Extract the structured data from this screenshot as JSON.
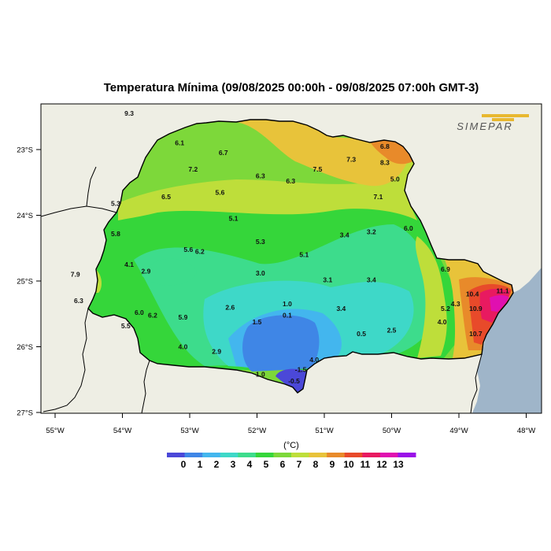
{
  "map": {
    "title": "Temperatura Mínima (09/08/2025 00:00h - 09/08/2025 07:00h GMT-3)",
    "logo_text": "SIMEPAR",
    "lon_ticks": [
      "55°W",
      "54°W",
      "53°W",
      "52°W",
      "51°W",
      "50°W",
      "49°W",
      "48°W"
    ],
    "lat_ticks": [
      "23°S",
      "24°S",
      "25°S",
      "26°S",
      "27°S"
    ],
    "colors": {
      "ocean": "#9fb5c9",
      "land": "#eeeee4",
      "border": "#000000"
    }
  },
  "legend": {
    "unit": "(°C)",
    "ticks": [
      "0",
      "1",
      "2",
      "3",
      "4",
      "5",
      "6",
      "7",
      "8",
      "9",
      "10",
      "11",
      "12",
      "13"
    ],
    "colors": [
      "#4b48d8",
      "#3f86e6",
      "#43b6ee",
      "#3ed8c8",
      "#3ddc8c",
      "#35d63a",
      "#7dd83a",
      "#bede3a",
      "#e8c33a",
      "#e88a2a",
      "#e84a2a",
      "#e81a60",
      "#e010b0",
      "#9a10e8"
    ]
  },
  "station_labels": [
    {
      "text": "9.3",
      "lon": -53.9,
      "lat": -22.45
    },
    {
      "text": "6.1",
      "lon": -53.15,
      "lat": -22.9
    },
    {
      "text": "6.7",
      "lon": -52.5,
      "lat": -23.05
    },
    {
      "text": "7.2",
      "lon": -52.95,
      "lat": -23.3
    },
    {
      "text": "6.3",
      "lon": -51.95,
      "lat": -23.4
    },
    {
      "text": "6.3",
      "lon": -51.5,
      "lat": -23.48
    },
    {
      "text": "7.5",
      "lon": -51.1,
      "lat": -23.3
    },
    {
      "text": "7.3",
      "lon": -50.6,
      "lat": -23.15
    },
    {
      "text": "6.8",
      "lon": -50.1,
      "lat": -22.95
    },
    {
      "text": "8.3",
      "lon": -50.1,
      "lat": -23.2
    },
    {
      "text": "5.0",
      "lon": -49.95,
      "lat": -23.45
    },
    {
      "text": "7.1",
      "lon": -50.2,
      "lat": -23.72
    },
    {
      "text": "5.6",
      "lon": -52.55,
      "lat": -23.65
    },
    {
      "text": "6.5",
      "lon": -53.35,
      "lat": -23.72
    },
    {
      "text": "5.3",
      "lon": -54.1,
      "lat": -23.82
    },
    {
      "text": "5.1",
      "lon": -52.35,
      "lat": -24.05
    },
    {
      "text": "5.8",
      "lon": -54.1,
      "lat": -24.28
    },
    {
      "text": "6.0",
      "lon": -49.75,
      "lat": -24.2
    },
    {
      "text": "3.4",
      "lon": -50.7,
      "lat": -24.3
    },
    {
      "text": "3.2",
      "lon": -50.3,
      "lat": -24.25
    },
    {
      "text": "5.3",
      "lon": -51.95,
      "lat": -24.4
    },
    {
      "text": "5.1",
      "lon": -51.3,
      "lat": -24.6
    },
    {
      "text": "5.6",
      "lon": -53.02,
      "lat": -24.52
    },
    {
      "text": "6.2",
      "lon": -52.85,
      "lat": -24.55
    },
    {
      "text": "4.1",
      "lon": -53.9,
      "lat": -24.75
    },
    {
      "text": "2.9",
      "lon": -53.65,
      "lat": -24.85
    },
    {
      "text": "3.0",
      "lon": -51.95,
      "lat": -24.88
    },
    {
      "text": "3.1",
      "lon": -50.95,
      "lat": -24.98
    },
    {
      "text": "3.4",
      "lon": -50.3,
      "lat": -24.98
    },
    {
      "text": "6.9",
      "lon": -49.2,
      "lat": -24.82
    },
    {
      "text": "7.9",
      "lon": -54.7,
      "lat": -24.9
    },
    {
      "text": "6.3",
      "lon": -54.65,
      "lat": -25.3
    },
    {
      "text": "10.4",
      "lon": -48.8,
      "lat": -25.2
    },
    {
      "text": "11.1",
      "lon": -48.35,
      "lat": -25.15
    },
    {
      "text": "1.0",
      "lon": -51.55,
      "lat": -25.35
    },
    {
      "text": "4.3",
      "lon": -49.05,
      "lat": -25.35
    },
    {
      "text": "5.2",
      "lon": -49.2,
      "lat": -25.42
    },
    {
      "text": "10.9",
      "lon": -48.75,
      "lat": -25.42
    },
    {
      "text": "6.0",
      "lon": -53.75,
      "lat": -25.48
    },
    {
      "text": "6.2",
      "lon": -53.55,
      "lat": -25.52
    },
    {
      "text": "5.9",
      "lon": -53.1,
      "lat": -25.55
    },
    {
      "text": "2.6",
      "lon": -52.4,
      "lat": -25.4
    },
    {
      "text": "0.1",
      "lon": -51.55,
      "lat": -25.52
    },
    {
      "text": "3.4",
      "lon": -50.75,
      "lat": -25.42
    },
    {
      "text": "5.5",
      "lon": -53.95,
      "lat": -25.68
    },
    {
      "text": "1.5",
      "lon": -52.0,
      "lat": -25.62
    },
    {
      "text": "4.0",
      "lon": -49.25,
      "lat": -25.62
    },
    {
      "text": "0.5",
      "lon": -50.45,
      "lat": -25.8
    },
    {
      "text": "2.5",
      "lon": -50.0,
      "lat": -25.75
    },
    {
      "text": "10.7",
      "lon": -48.75,
      "lat": -25.8
    },
    {
      "text": "4.0",
      "lon": -53.1,
      "lat": -26.0
    },
    {
      "text": "2.9",
      "lon": -52.6,
      "lat": -26.07
    },
    {
      "text": "4.0",
      "lon": -51.15,
      "lat": -26.2
    },
    {
      "text": "-1.5",
      "lon": -51.35,
      "lat": -26.35
    },
    {
      "text": "1.0",
      "lon": -51.95,
      "lat": -26.42
    },
    {
      "text": "-0.5",
      "lon": -51.45,
      "lat": -26.52
    }
  ]
}
